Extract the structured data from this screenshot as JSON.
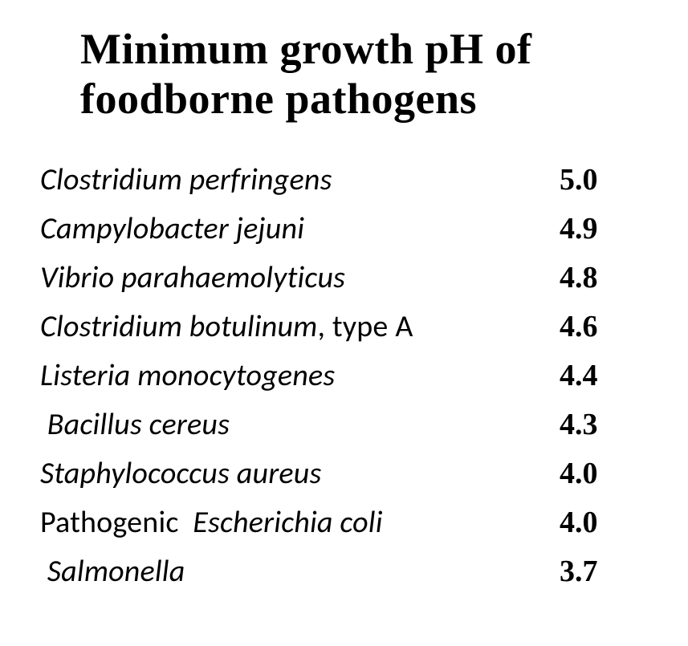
{
  "title_line1": "Minimum growth pH of",
  "title_line2": "foodborne pathogens",
  "title_fontsize": 54,
  "title_fontweight": 700,
  "label_fontsize": 38,
  "value_fontsize": 38,
  "value_fontweight": 700,
  "background_color": "#ffffff",
  "text_color": "#000000",
  "rows": [
    {
      "label_html": "<i>Clostridium perfringens</i>",
      "value": "5.0"
    },
    {
      "label_html": "<i>Campylobacter jejuni</i>",
      "value": "4.9"
    },
    {
      "label_html": "<i>Vibrio parahaemolyticus</i>",
      "value": "4.8"
    },
    {
      "label_html": "<i>Clostridium botulinum</i><span class=\"upright\">, type A</span>",
      "value": "4.6"
    },
    {
      "label_html": "<i>Listeria monocytogenes</i>",
      "value": "4.4"
    },
    {
      "label_html": "<i>&nbsp;Bacillus cereus</i>",
      "value": "4.3"
    },
    {
      "label_html": "<i>Staphylococcus aureus</i>",
      "value": "4.0"
    },
    {
      "label_html": "<span class=\"upright\">Pathogenic&nbsp; </span><i>Escherichia coli</i>",
      "value": "4.0"
    },
    {
      "label_html": "<i>&nbsp;Salmonella</i>",
      "value": "3.7"
    }
  ]
}
